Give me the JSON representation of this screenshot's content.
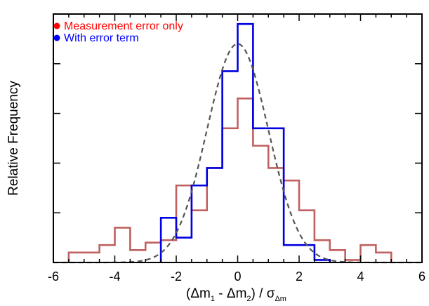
{
  "chart_data": {
    "type": "histogram",
    "title": "",
    "xlabel": {
      "parts": [
        {
          "text": "(Δm",
          "sub": false
        },
        {
          "text": "1",
          "sub": true
        },
        {
          "text": " - Δm",
          "sub": false
        },
        {
          "text": "2",
          "sub": true
        },
        {
          "text": ") / σ",
          "sub": false
        },
        {
          "text": "Δm",
          "sub": true
        }
      ]
    },
    "ylabel": "Relative Frequency",
    "xlim": [
      -6,
      6
    ],
    "ylim": [
      0,
      1.0
    ],
    "xticks": [
      -6,
      -4,
      -2,
      0,
      2,
      4,
      6
    ],
    "xminor_step": 0.5,
    "yticks": [
      0.2,
      0.4,
      0.6,
      0.8,
      1.0
    ],
    "ytick_labels_shown": false,
    "grid": false,
    "legend_position": "top-left",
    "series": [
      {
        "name": "Measurement error only",
        "color": "#c06060",
        "legend_color": "#ff0000",
        "legend_text_color": "#ff0000",
        "style": "step",
        "bin_edges": [
          -5.5,
          -4.5,
          -4.0,
          -3.5,
          -3.0,
          -2.5,
          -2.0,
          -1.5,
          -1.0,
          -0.5,
          0.0,
          0.5,
          1.0,
          1.5,
          2.0,
          2.5,
          3.0,
          3.5,
          4.0,
          4.5,
          5.0
        ],
        "values": [
          0.04,
          0.07,
          0.14,
          0.05,
          0.08,
          0.09,
          0.31,
          0.21,
          0.38,
          0.54,
          0.66,
          0.47,
          0.38,
          0.33,
          0.21,
          0.09,
          0.05,
          0.01,
          0.07,
          0.04
        ]
      },
      {
        "name": "With error term",
        "color": "#0000e0",
        "legend_color": "#0000ff",
        "legend_text_color": "#0000ff",
        "style": "step",
        "bin_edges": [
          -2.5,
          -2.0,
          -1.5,
          -1.0,
          -0.5,
          0.0,
          0.5,
          1.0,
          1.5,
          2.0,
          2.5,
          3.0
        ],
        "values": [
          0.18,
          0.1,
          0.31,
          0.38,
          0.77,
          0.96,
          0.54,
          0.54,
          0.07,
          0.07,
          0.01
        ]
      },
      {
        "name": "",
        "color": "#555555",
        "style": "dashed-curve",
        "gaussian": {
          "mean": 0.0,
          "sigma": 1.0,
          "peak": 0.88
        }
      }
    ]
  }
}
